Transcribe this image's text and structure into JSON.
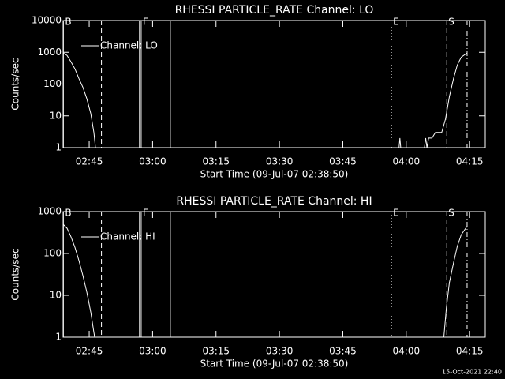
{
  "chart_data": [
    {
      "type": "line",
      "title": "RHESSI PARTICLE_RATE Channel: LO",
      "x_label": "Start Time (09-Jul-07 02:38:50)",
      "y_label": "Counts/sec",
      "xlim": [
        158.83,
        258.7
      ],
      "ylim": [
        1,
        10000
      ],
      "log_y": true,
      "xticks": [
        {
          "value": 165,
          "label": "02:45"
        },
        {
          "value": 180,
          "label": "03:00"
        },
        {
          "value": 195,
          "label": "03:15"
        },
        {
          "value": 210,
          "label": "03:30"
        },
        {
          "value": 225,
          "label": "03:45"
        },
        {
          "value": 240,
          "label": "04:00"
        },
        {
          "value": 255,
          "label": "04:15"
        }
      ],
      "yticks": [
        1,
        10,
        100,
        1000,
        10000
      ],
      "legend": "upper left",
      "markers": [
        {
          "x": 158.9,
          "style": "solid",
          "label": "B"
        },
        {
          "x": 167.9,
          "style": "dashed"
        },
        {
          "x": 176.9,
          "style": "solid"
        },
        {
          "x": 177.3,
          "style": "solid",
          "label": "F"
        },
        {
          "x": 184.2,
          "style": "solid"
        },
        {
          "x": 236.5,
          "style": "dotted",
          "label": "E"
        },
        {
          "x": 249.6,
          "style": "dashed",
          "label": "S"
        },
        {
          "x": 254.4,
          "style": "dashdot"
        }
      ],
      "series": [
        {
          "name": "Channel: LO",
          "color": "#ffffff",
          "x": [
            158.83,
            159.76,
            160.7,
            161.63,
            162.56,
            163.49,
            164.43,
            165.36,
            166.11,
            166.48,
            200,
            238.3,
            238.5,
            238.7,
            244.3,
            244.6,
            244.9,
            245.3,
            246.1,
            246.9,
            248.4,
            249.3,
            250.2,
            251.2,
            252.1,
            253.0,
            254.4
          ],
          "values": [
            950,
            800,
            500,
            300,
            150,
            80,
            35,
            12,
            3,
            1,
            null,
            1,
            2,
            1,
            1,
            2,
            1,
            2,
            2,
            3,
            3,
            8,
            40,
            150,
            400,
            700,
            950
          ]
        }
      ]
    },
    {
      "type": "line",
      "title": "RHESSI PARTICLE_RATE Channel: HI",
      "x_label": "Start Time (09-Jul-07 02:38:50)",
      "y_label": "Counts/sec",
      "xlim": [
        158.83,
        258.7
      ],
      "ylim": [
        1,
        1000
      ],
      "log_y": true,
      "xticks": [
        {
          "value": 165,
          "label": "02:45"
        },
        {
          "value": 180,
          "label": "03:00"
        },
        {
          "value": 195,
          "label": "03:15"
        },
        {
          "value": 210,
          "label": "03:30"
        },
        {
          "value": 225,
          "label": "03:45"
        },
        {
          "value": 240,
          "label": "04:00"
        },
        {
          "value": 255,
          "label": "04:15"
        }
      ],
      "yticks": [
        1,
        10,
        100,
        1000
      ],
      "legend": "upper left",
      "markers": [
        {
          "x": 158.9,
          "style": "solid",
          "label": "B"
        },
        {
          "x": 167.9,
          "style": "dashed"
        },
        {
          "x": 176.9,
          "style": "solid"
        },
        {
          "x": 177.3,
          "style": "solid",
          "label": "F"
        },
        {
          "x": 184.2,
          "style": "solid"
        },
        {
          "x": 236.5,
          "style": "dotted",
          "label": "E"
        },
        {
          "x": 249.6,
          "style": "dashed",
          "label": "S"
        },
        {
          "x": 254.4,
          "style": "dashdot"
        }
      ],
      "series": [
        {
          "name": "Channel: HI",
          "color": "#ffffff",
          "x": [
            158.83,
            159.76,
            160.7,
            161.63,
            162.56,
            163.49,
            164.43,
            165.36,
            166.11,
            166.3,
            200,
            248.9,
            249.5,
            250.2,
            251.2,
            252.1,
            253.0,
            254.4
          ],
          "values": [
            500,
            400,
            250,
            140,
            68,
            30,
            12,
            4,
            1.3,
            1,
            null,
            1,
            5,
            20,
            60,
            150,
            280,
            450
          ]
        }
      ]
    }
  ],
  "footer": "15-Oct-2021 22:40"
}
